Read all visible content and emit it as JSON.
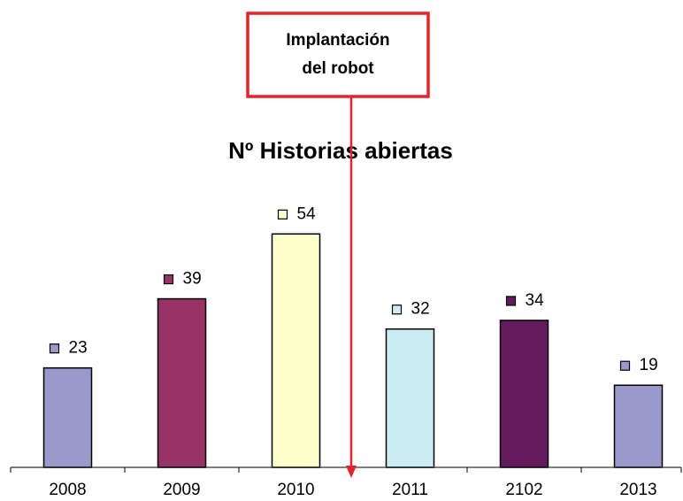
{
  "chart_data": {
    "type": "bar",
    "title": "Nº Historias abiertas",
    "annotation": [
      "Implantación",
      "del robot"
    ],
    "categories": [
      "2008",
      "2009",
      "2010",
      "2011",
      "2102",
      "2013"
    ],
    "values": [
      23,
      39,
      54,
      32,
      34,
      19
    ],
    "colors": [
      "#9999cc",
      "#993366",
      "#ffffcc",
      "#ccecf4",
      "#661a5e",
      "#9999cc"
    ],
    "ylim": [
      0,
      60
    ],
    "grid": false
  }
}
